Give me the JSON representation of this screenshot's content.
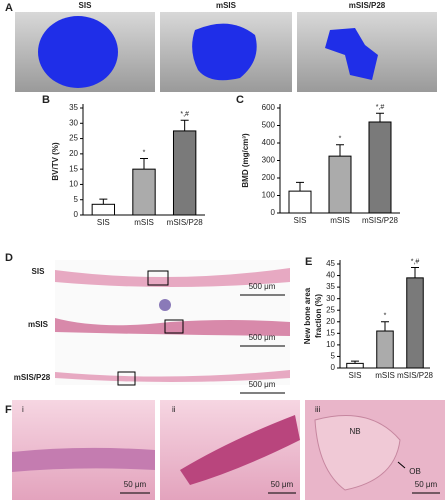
{
  "chart_data": [
    {
      "type": "bar",
      "panel": "B",
      "ylabel": "BV/TV (%)",
      "categories": [
        "SIS",
        "mSIS",
        "mSIS/P28"
      ],
      "values": [
        3.5,
        15,
        27.5
      ],
      "errors": [
        1.7,
        3.5,
        3.5
      ],
      "annotations": [
        null,
        "*",
        "*,#"
      ],
      "colors": [
        "#ffffff",
        "#ababab",
        "#7a7a7a"
      ],
      "ylim": [
        0,
        35
      ],
      "yticks": [
        0,
        5,
        10,
        15,
        20,
        25,
        30,
        35
      ]
    },
    {
      "type": "bar",
      "panel": "C",
      "ylabel": "BMD (mg/cm³)",
      "categories": [
        "SIS",
        "mSIS",
        "mSIS/P28"
      ],
      "values": [
        125,
        325,
        520
      ],
      "errors": [
        50,
        65,
        50
      ],
      "annotations": [
        null,
        "*",
        "*,#"
      ],
      "colors": [
        "#ffffff",
        "#ababab",
        "#7a7a7a"
      ],
      "ylim": [
        0,
        600
      ],
      "yticks": [
        0,
        100,
        200,
        300,
        400,
        500,
        600
      ]
    },
    {
      "type": "bar",
      "panel": "E",
      "ylabel": [
        "New bone area",
        "fraction (%)"
      ],
      "categories": [
        "SIS",
        "mSIS",
        "mSIS/P28"
      ],
      "values": [
        2,
        16,
        39
      ],
      "errors": [
        1,
        4,
        4.5
      ],
      "annotations": [
        null,
        "*",
        "*,#"
      ],
      "colors": [
        "#ffffff",
        "#ababab",
        "#7a7a7a"
      ],
      "ylim": [
        0,
        45
      ],
      "yticks": [
        0,
        5,
        10,
        15,
        20,
        25,
        30,
        35,
        40,
        45
      ]
    }
  ],
  "panels": {
    "A": {
      "letter": "A",
      "labels": [
        "SIS",
        "mSIS",
        "mSIS/P28"
      ]
    },
    "D": {
      "letter": "D",
      "labels": [
        "SIS",
        "mSIS",
        "mSIS/P28"
      ],
      "scale_bars": [
        "500 μm",
        "500 μm",
        "500 μm"
      ]
    },
    "F": {
      "letter": "F",
      "labels": [
        "i",
        "ii",
        "iii"
      ],
      "scale_bars": [
        "50 μm",
        "50 μm",
        "50 μm"
      ],
      "annotations": [
        "NB",
        "OB"
      ]
    }
  }
}
